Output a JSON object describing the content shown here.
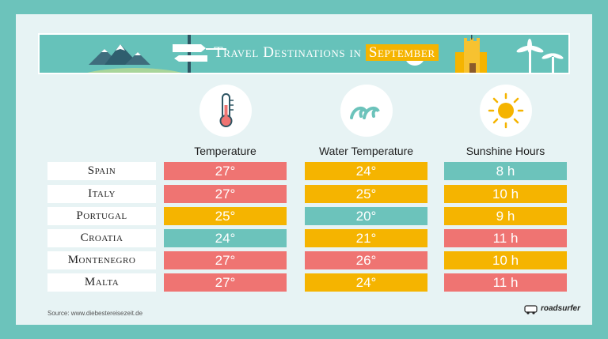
{
  "title": {
    "prefix": "Travel Destinations in",
    "highlight": "September"
  },
  "colors": {
    "hot": "#ef7472",
    "warm": "#f5b400",
    "cool": "#6cc3bb"
  },
  "columns": [
    {
      "label": "Temperature",
      "icon": "thermometer-icon"
    },
    {
      "label": "Water Temperature",
      "icon": "waves-icon"
    },
    {
      "label": "Sunshine Hours",
      "icon": "sun-icon"
    }
  ],
  "rows": [
    {
      "country": "Spain",
      "temperature": "27°",
      "temperature_color": "#ef7472",
      "water": "24°",
      "water_color": "#f5b400",
      "sunshine": "8 h",
      "sunshine_color": "#6cc3bb"
    },
    {
      "country": "Italy",
      "temperature": "27°",
      "temperature_color": "#ef7472",
      "water": "25°",
      "water_color": "#f5b400",
      "sunshine": "10 h",
      "sunshine_color": "#f5b400"
    },
    {
      "country": "Portugal",
      "temperature": "25°",
      "temperature_color": "#f5b400",
      "water": "20°",
      "water_color": "#6cc3bb",
      "sunshine": "9 h",
      "sunshine_color": "#f5b400"
    },
    {
      "country": "Croatia",
      "temperature": "24°",
      "temperature_color": "#6cc3bb",
      "water": "21°",
      "water_color": "#f5b400",
      "sunshine": "11 h",
      "sunshine_color": "#ef7472"
    },
    {
      "country": "Montenegro",
      "temperature": "27°",
      "temperature_color": "#ef7472",
      "water": "26°",
      "water_color": "#ef7472",
      "sunshine": "10 h",
      "sunshine_color": "#f5b400"
    },
    {
      "country": "Malta",
      "temperature": "27°",
      "temperature_color": "#ef7472",
      "water": "24°",
      "water_color": "#f5b400",
      "sunshine": "11 h",
      "sunshine_color": "#ef7472"
    }
  ],
  "footer": {
    "source": "Source: www.diebestereisezeit.de",
    "brand": "roadsurfer"
  }
}
